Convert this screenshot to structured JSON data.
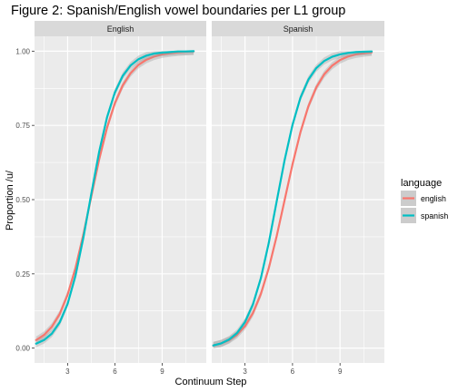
{
  "chart_data": {
    "type": "line",
    "title": "Figure 2: Spanish/English vowel boundaries per L1 group",
    "xlabel": "Continuum Step",
    "ylabel": "Proportion /u/",
    "xlim": [
      0.9,
      11.8
    ],
    "ylim": [
      -0.05,
      1.05
    ],
    "xticks": [
      3,
      6,
      9
    ],
    "yticks": [
      0,
      0.25,
      0.5,
      0.75,
      1
    ],
    "ytick_labels": [
      "0.00",
      "0.25",
      "0.50",
      "0.75",
      "1.00"
    ],
    "grid": true,
    "legend": {
      "title": "language",
      "position": "right",
      "entries": [
        {
          "label": "english",
          "color": "#F8766D"
        },
        {
          "label": "spanish",
          "color": "#00BFC4"
        }
      ]
    },
    "facets": [
      {
        "label": "English",
        "series": [
          {
            "name": "english",
            "color": "#F8766D",
            "x": [
              1,
              1.5,
              2,
              2.5,
              3,
              3.5,
              4,
              4.5,
              5,
              5.5,
              6,
              6.5,
              7,
              7.5,
              8,
              8.5,
              9,
              9.5,
              10,
              10.5,
              11
            ],
            "y": [
              0.027,
              0.044,
              0.072,
              0.115,
              0.18,
              0.27,
              0.383,
              0.51,
              0.635,
              0.742,
              0.825,
              0.885,
              0.926,
              0.954,
              0.971,
              0.982,
              0.989,
              0.993,
              0.996,
              0.998,
              0.999
            ],
            "band": 0.012
          },
          {
            "name": "spanish",
            "color": "#00BFC4",
            "x": [
              1,
              1.5,
              2,
              2.5,
              3,
              3.5,
              4,
              4.5,
              5,
              5.5,
              6,
              6.5,
              7,
              7.5,
              8,
              8.5,
              9,
              9.5,
              10,
              10.5,
              11
            ],
            "y": [
              0.015,
              0.027,
              0.049,
              0.087,
              0.149,
              0.244,
              0.372,
              0.519,
              0.661,
              0.777,
              0.861,
              0.917,
              0.952,
              0.973,
              0.985,
              0.992,
              0.995,
              0.997,
              0.999,
              0.999,
              1.0
            ],
            "band": 0.012
          }
        ]
      },
      {
        "label": "Spanish",
        "series": [
          {
            "name": "english",
            "color": "#F8766D",
            "x": [
              1,
              1.5,
              2,
              2.5,
              3,
              3.5,
              4,
              4.5,
              5,
              5.5,
              6,
              6.5,
              7,
              7.5,
              8,
              8.5,
              9,
              9.5,
              10,
              10.5,
              11
            ],
            "y": [
              0.009,
              0.016,
              0.027,
              0.045,
              0.074,
              0.118,
              0.182,
              0.269,
              0.377,
              0.498,
              0.619,
              0.727,
              0.814,
              0.878,
              0.922,
              0.951,
              0.97,
              0.982,
              0.989,
              0.993,
              0.996
            ],
            "band": 0.012
          },
          {
            "name": "spanish",
            "color": "#00BFC4",
            "x": [
              1,
              1.5,
              2,
              2.5,
              3,
              3.5,
              4,
              4.5,
              5,
              5.5,
              6,
              6.5,
              7,
              7.5,
              8,
              8.5,
              9,
              9.5,
              10,
              10.5,
              11
            ],
            "y": [
              0.009,
              0.016,
              0.029,
              0.051,
              0.088,
              0.147,
              0.235,
              0.354,
              0.494,
              0.633,
              0.752,
              0.843,
              0.904,
              0.943,
              0.967,
              0.981,
              0.989,
              0.994,
              0.997,
              0.998,
              0.999
            ],
            "band": 0.012
          }
        ]
      }
    ]
  }
}
